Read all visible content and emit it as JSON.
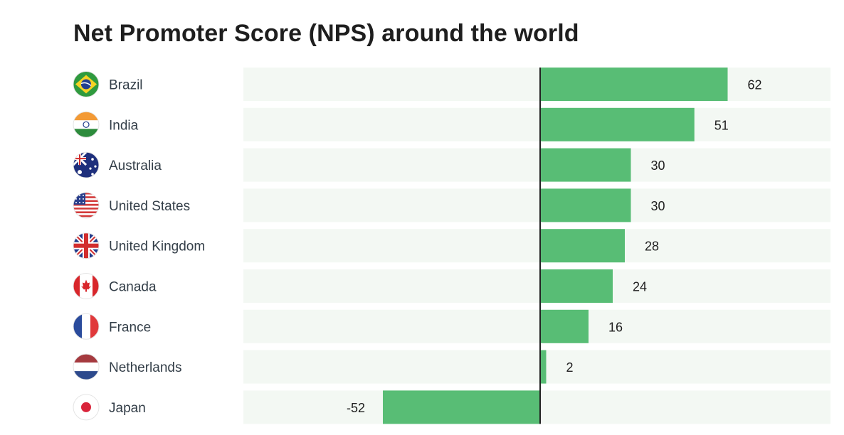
{
  "title": "Net Promoter Score (NPS) around the world",
  "colors": {
    "bar": "#58bd75",
    "track": "#f3f8f3",
    "axis": "#222222"
  },
  "chart_data": {
    "type": "bar",
    "orientation": "horizontal",
    "title": "Net Promoter Score (NPS) around the world",
    "xlim": [
      -100,
      100
    ],
    "grid": false,
    "categories": [
      "Brazil",
      "India",
      "Australia",
      "United States",
      "United Kingdom",
      "Canada",
      "France",
      "Netherlands",
      "Japan"
    ],
    "values": [
      62,
      51,
      30,
      30,
      28,
      24,
      16,
      2,
      -52
    ],
    "value_labels": [
      "62",
      "51",
      "30",
      "30",
      "28",
      "24",
      "16",
      "2",
      "-52"
    ],
    "flag_icons": [
      "brazil-flag-icon",
      "india-flag-icon",
      "australia-flag-icon",
      "united-states-flag-icon",
      "united-kingdom-flag-icon",
      "canada-flag-icon",
      "france-flag-icon",
      "netherlands-flag-icon",
      "japan-flag-icon"
    ]
  }
}
